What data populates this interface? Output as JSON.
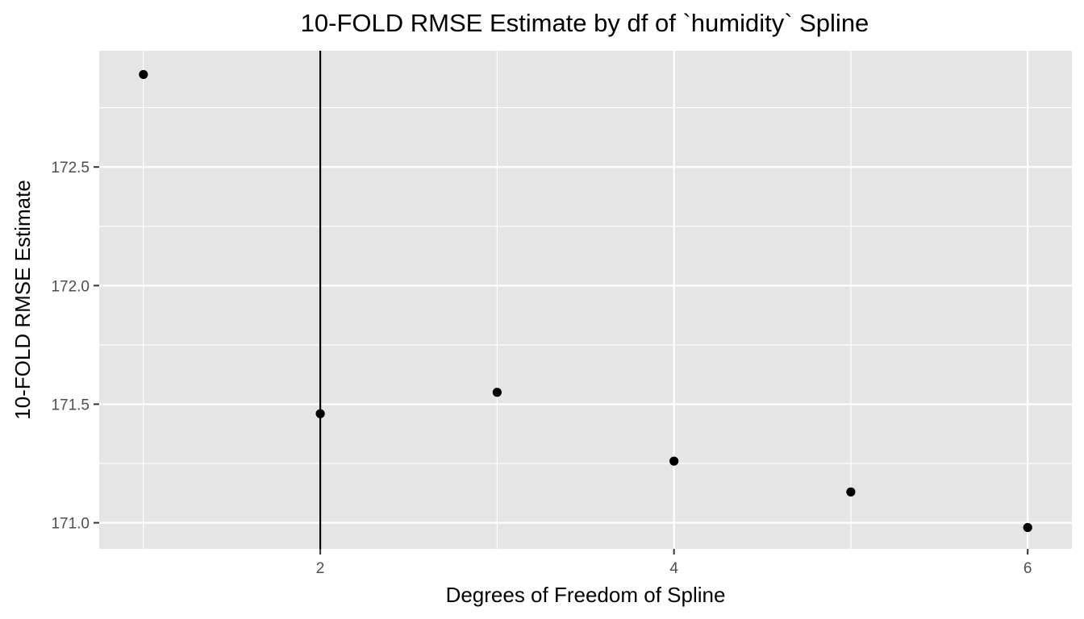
{
  "chart_data": {
    "type": "scatter",
    "title": "10-FOLD RMSE Estimate by df of `humidity` Spline",
    "xlabel": "Degrees of Freedom of Spline",
    "ylabel": "10-FOLD RMSE Estimate",
    "x": [
      1,
      2,
      3,
      4,
      5,
      6
    ],
    "y": [
      172.89,
      171.46,
      171.55,
      171.26,
      171.13,
      170.98
    ],
    "xlim": [
      0.75,
      6.25
    ],
    "ylim": [
      170.89,
      172.99
    ],
    "x_ticks": [
      2,
      4,
      6
    ],
    "x_tick_labels": [
      "2",
      "4",
      "6"
    ],
    "y_ticks": [
      171.0,
      171.5,
      172.0,
      172.5
    ],
    "y_tick_labels": [
      "171.0",
      "171.5",
      "172.0",
      "172.5"
    ],
    "vline_x": 2,
    "grid": true,
    "legend": "none",
    "colors": {
      "panel_background": "#e5e5e5",
      "grid": "#ffffff",
      "points": "#000000",
      "vline": "#000000",
      "tick_label": "#4d4d4d"
    }
  }
}
